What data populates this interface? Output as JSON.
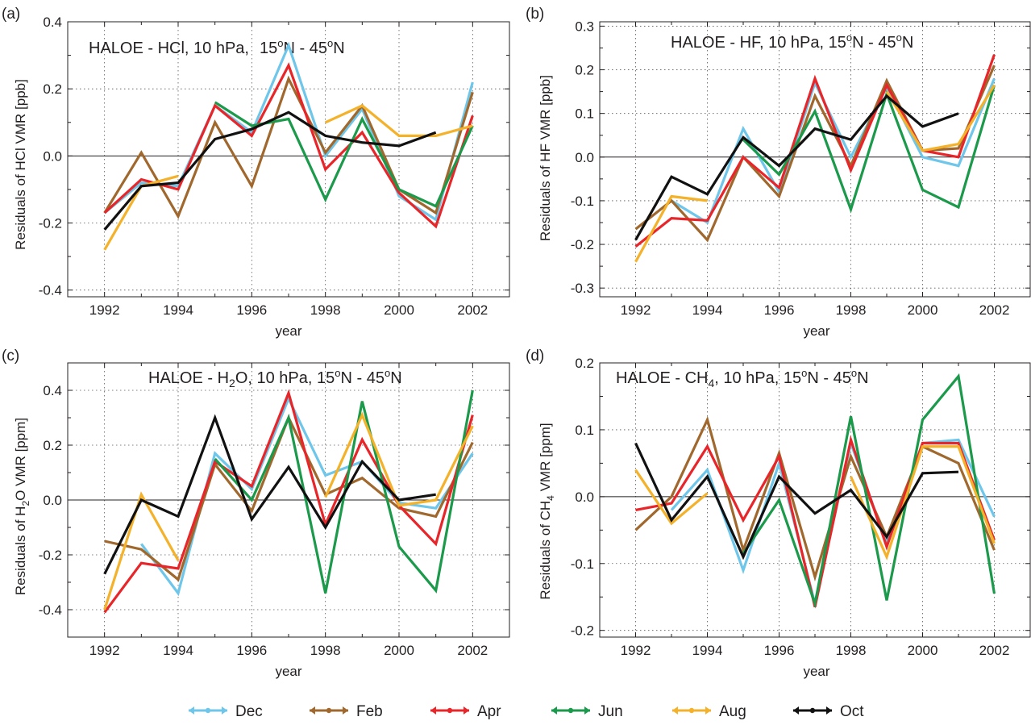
{
  "colors": {
    "Dec": "#6ec6ea",
    "Feb": "#a0682d",
    "Apr": "#e8262a",
    "Jun": "#1a9a4a",
    "Aug": "#f4b12a",
    "Oct": "#111111"
  },
  "legend": [
    "Dec",
    "Feb",
    "Apr",
    "Jun",
    "Aug",
    "Oct"
  ],
  "chart_data": [
    {
      "type": "line",
      "panel": "(a)",
      "title": "HALOE - HCl, 10 hPa,    15°N - 45°N",
      "xlabel": "year",
      "ylabel": "Residuals of HCl VMR [ppb]",
      "xlim": [
        1991,
        2003
      ],
      "ylim": [
        -0.42,
        0.4
      ],
      "x_ticks": [
        1992,
        1994,
        1996,
        1998,
        2000,
        2002
      ],
      "y_ticks": [
        -0.4,
        -0.2,
        0.0,
        0.2,
        0.4
      ],
      "y_tick_labels": [
        "-0.4",
        "-0.2",
        "0.0",
        "0.2",
        "0.4"
      ],
      "grid": true,
      "x": [
        1992,
        1993,
        1994,
        1995,
        1996,
        1997,
        1998,
        1999,
        2000,
        2001,
        2002
      ],
      "series": [
        {
          "name": "Dec",
          "values": [
            -0.17,
            -0.08,
            -0.09,
            0.15,
            0.07,
            0.33,
            0.0,
            0.14,
            -0.12,
            -0.19,
            0.22
          ]
        },
        {
          "name": "Feb",
          "values": [
            -0.17,
            0.01,
            -0.18,
            0.1,
            -0.09,
            0.23,
            0.01,
            0.15,
            -0.1,
            -0.17,
            0.19
          ]
        },
        {
          "name": "Apr",
          "values": [
            -0.17,
            -0.07,
            -0.1,
            0.15,
            0.06,
            0.27,
            -0.04,
            0.07,
            -0.11,
            -0.21,
            0.12
          ]
        },
        {
          "name": "Jun",
          "values": [
            null,
            null,
            null,
            0.16,
            0.09,
            0.11,
            -0.13,
            0.11,
            -0.1,
            -0.15,
            0.09
          ]
        },
        {
          "name": "Aug",
          "values": [
            -0.28,
            -0.09,
            -0.06,
            null,
            null,
            null,
            0.1,
            0.15,
            0.06,
            0.06,
            0.09
          ]
        },
        {
          "name": "Oct",
          "values": [
            -0.22,
            -0.09,
            -0.08,
            0.05,
            0.08,
            0.13,
            0.06,
            0.04,
            0.03,
            0.07,
            null
          ]
        }
      ]
    },
    {
      "type": "line",
      "panel": "(b)",
      "title": "HALOE - HF,  10 hPa, 15°N - 45°N",
      "xlabel": "year",
      "ylabel": "Residuals of HF VMR [ppb]",
      "xlim": [
        1991,
        2003
      ],
      "ylim": [
        -0.32,
        0.31
      ],
      "x_ticks": [
        1992,
        1994,
        1996,
        1998,
        2000,
        2002
      ],
      "y_ticks": [
        -0.3,
        -0.2,
        -0.1,
        0.0,
        0.1,
        0.2,
        0.3
      ],
      "y_tick_labels": [
        "-0.3",
        "-0.2",
        "-0.1",
        "0.0",
        "0.1",
        "0.2",
        "0.3"
      ],
      "grid": true,
      "x": [
        1992,
        1993,
        1994,
        1995,
        1996,
        1997,
        1998,
        1999,
        2000,
        2001,
        2002
      ],
      "series": [
        {
          "name": "Dec",
          "values": [
            null,
            -0.1,
            -0.15,
            0.065,
            -0.08,
            0.17,
            0.0,
            0.16,
            0.0,
            -0.02,
            0.18
          ]
        },
        {
          "name": "Feb",
          "values": [
            -0.165,
            -0.1,
            -0.19,
            0.0,
            -0.09,
            0.14,
            -0.02,
            0.175,
            0.015,
            0.02,
            0.21
          ]
        },
        {
          "name": "Apr",
          "values": [
            -0.205,
            -0.14,
            -0.145,
            0.0,
            -0.07,
            0.18,
            -0.03,
            0.165,
            0.015,
            0.0,
            0.235
          ]
        },
        {
          "name": "Jun",
          "values": [
            null,
            null,
            null,
            0.04,
            -0.04,
            0.105,
            -0.12,
            0.145,
            -0.075,
            -0.115,
            0.165
          ]
        },
        {
          "name": "Aug",
          "values": [
            -0.24,
            -0.09,
            -0.1,
            null,
            null,
            null,
            null,
            0.15,
            0.015,
            0.03,
            0.165
          ]
        },
        {
          "name": "Oct",
          "values": [
            -0.19,
            -0.045,
            -0.085,
            0.045,
            -0.02,
            0.065,
            0.04,
            0.14,
            0.07,
            0.1,
            null
          ]
        }
      ]
    },
    {
      "type": "line",
      "panel": "(c)",
      "title": "HALOE - H2O,  10 hPa, 15°N - 45°N",
      "xlabel": "year",
      "ylabel": "Residuals of H2O VMR [ppm]",
      "xlim": [
        1991,
        2003
      ],
      "ylim": [
        -0.5,
        0.5
      ],
      "x_ticks": [
        1992,
        1994,
        1996,
        1998,
        2000,
        2002
      ],
      "y_ticks": [
        -0.4,
        -0.2,
        0.0,
        0.2,
        0.4
      ],
      "y_tick_labels": [
        "-0.4",
        "-0.2",
        "0.0",
        "0.2",
        "0.4"
      ],
      "grid": true,
      "x": [
        1992,
        1993,
        1994,
        1995,
        1996,
        1997,
        1998,
        1999,
        2000,
        2001,
        2002
      ],
      "series": [
        {
          "name": "Dec",
          "values": [
            null,
            -0.16,
            -0.34,
            0.17,
            0.04,
            0.37,
            0.09,
            0.14,
            -0.01,
            -0.03,
            0.17
          ]
        },
        {
          "name": "Feb",
          "values": [
            -0.15,
            -0.18,
            -0.29,
            0.13,
            -0.04,
            0.3,
            0.02,
            0.08,
            -0.03,
            -0.06,
            0.21
          ]
        },
        {
          "name": "Apr",
          "values": [
            -0.41,
            -0.23,
            -0.25,
            0.14,
            0.05,
            0.39,
            -0.09,
            0.22,
            -0.02,
            -0.16,
            0.31
          ]
        },
        {
          "name": "Jun",
          "values": [
            null,
            null,
            null,
            0.15,
            0.0,
            0.3,
            -0.34,
            0.36,
            -0.17,
            -0.33,
            0.4
          ]
        },
        {
          "name": "Aug",
          "values": [
            -0.4,
            0.02,
            -0.22,
            null,
            null,
            null,
            0.01,
            0.31,
            -0.02,
            0.0,
            0.27
          ]
        },
        {
          "name": "Oct",
          "values": [
            -0.27,
            0.0,
            -0.06,
            0.3,
            -0.07,
            0.12,
            -0.1,
            0.14,
            0.0,
            0.02,
            null
          ]
        }
      ]
    },
    {
      "type": "line",
      "panel": "(d)",
      "title": "HALOE - CH4,  10 hPa, 15°N - 45°N",
      "xlabel": "year",
      "ylabel": "Residuals of CH4 VMR [ppm]",
      "xlim": [
        1991,
        2003
      ],
      "ylim": [
        -0.21,
        0.2
      ],
      "x_ticks": [
        1992,
        1994,
        1996,
        1998,
        2000,
        2002
      ],
      "y_ticks": [
        -0.2,
        -0.1,
        0.0,
        0.1,
        0.2
      ],
      "y_tick_labels": [
        "-0.2",
        "-0.1",
        "0.0",
        "0.1",
        "0.2"
      ],
      "grid": true,
      "x": [
        1992,
        1993,
        1994,
        1995,
        1996,
        1997,
        1998,
        1999,
        2000,
        2001,
        2002
      ],
      "series": [
        {
          "name": "Dec",
          "values": [
            null,
            -0.02,
            0.04,
            -0.11,
            0.05,
            -0.16,
            0.08,
            -0.07,
            0.08,
            0.085,
            -0.03
          ]
        },
        {
          "name": "Feb",
          "values": [
            -0.05,
            0.0,
            0.115,
            -0.08,
            0.065,
            -0.12,
            0.06,
            -0.06,
            0.075,
            0.05,
            -0.08
          ]
        },
        {
          "name": "Apr",
          "values": [
            -0.02,
            -0.01,
            0.075,
            -0.035,
            0.06,
            -0.165,
            0.085,
            -0.075,
            0.08,
            0.08,
            -0.065
          ]
        },
        {
          "name": "Jun",
          "values": [
            null,
            null,
            null,
            -0.085,
            -0.005,
            -0.16,
            0.12,
            -0.155,
            0.115,
            0.18,
            -0.145
          ]
        },
        {
          "name": "Aug",
          "values": [
            0.04,
            -0.04,
            0.005,
            null,
            null,
            null,
            0.03,
            -0.09,
            0.075,
            0.075,
            -0.07
          ]
        },
        {
          "name": "Oct",
          "values": [
            0.08,
            -0.035,
            0.03,
            -0.09,
            0.03,
            -0.025,
            0.01,
            -0.06,
            0.035,
            0.037,
            null
          ]
        }
      ]
    }
  ]
}
